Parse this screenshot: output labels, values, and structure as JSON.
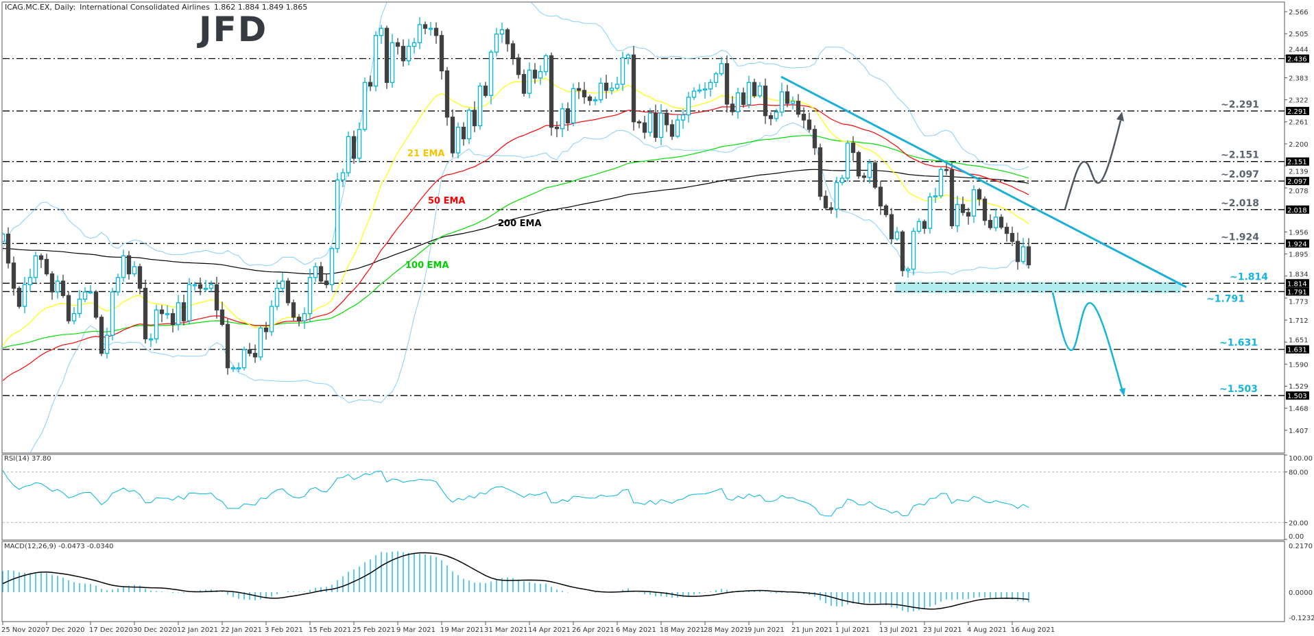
{
  "header": {
    "symbol": "ICAG.MC.EX, Daily:",
    "name": "International Consolidated Airlines",
    "ohlc": "1.862 1.884 1.849 1.865"
  },
  "logo": "JFD",
  "colors": {
    "bull": "#00b4e0",
    "bear": "#404040",
    "bollinger": "#87cefa",
    "ema21": "#ffff00",
    "ema50": "#ff0000",
    "ema100": "#00dd00",
    "ema200": "#000000",
    "trendline": "#1ab0d8",
    "support_zone": "#b0ecf0",
    "bull_scenario": "#4f5862",
    "bear_scenario": "#14b4dc"
  },
  "chart_data": {
    "type": "candlestick",
    "title": "ICAG.MC.EX, Daily:  International Consolidated Airlines",
    "x_tick_labels": [
      "25 Nov 2020",
      "7 Dec 2020",
      "17 Dec 2020",
      "30 Dec 2020",
      "12 Jan 2021",
      "22 Jan 2021",
      "3 Feb 2021",
      "15 Feb 2021",
      "25 Feb 2021",
      "9 Mar 2021",
      "19 Mar 2021",
      "31 Mar 2021",
      "14 Apr 2021",
      "26 Apr 2021",
      "6 May 2021",
      "18 May 2021",
      "28 May 2021",
      "9 Jun 2021",
      "21 Jun 2021",
      "1 Jul 2021",
      "13 Jul 2021",
      "23 Jul 2021",
      "4 Aug 2021",
      "16 Aug 2021"
    ],
    "ylim": [
      1.38,
      2.6
    ],
    "y_tick_labels": [
      "2.566",
      "2.505",
      "2.444",
      "2.383",
      "2.322",
      "2.261",
      "2.200",
      "2.139",
      "2.078",
      "1.956",
      "1.895",
      "1.834",
      "1.773",
      "1.712",
      "1.651",
      "1.590",
      "1.529",
      "1.468",
      "1.407"
    ],
    "close": [
      1.95,
      1.87,
      1.8,
      1.75,
      1.81,
      1.83,
      1.89,
      1.88,
      1.84,
      1.79,
      1.82,
      1.78,
      1.71,
      1.73,
      1.77,
      1.79,
      1.79,
      1.72,
      1.62,
      1.67,
      1.79,
      1.83,
      1.89,
      1.84,
      1.86,
      1.8,
      1.66,
      1.66,
      1.74,
      1.73,
      1.73,
      1.7,
      1.76,
      1.71,
      1.81,
      1.81,
      1.8,
      1.8,
      1.81,
      1.74,
      1.7,
      1.58,
      1.58,
      1.58,
      1.63,
      1.62,
      1.61,
      1.69,
      1.68,
      1.75,
      1.8,
      1.82,
      1.76,
      1.72,
      1.71,
      1.73,
      1.83,
      1.86,
      1.82,
      1.81,
      1.91,
      2.1,
      2.12,
      2.22,
      2.16,
      2.24,
      2.37,
      2.36,
      2.5,
      2.52,
      2.37,
      2.48,
      2.47,
      2.43,
      2.47,
      2.48,
      2.53,
      2.52,
      2.52,
      2.5,
      2.402,
      2.274,
      2.175,
      2.246,
      2.214,
      2.293,
      2.25,
      2.36,
      2.334,
      2.454,
      2.504,
      2.516,
      2.477,
      2.438,
      2.392,
      2.34,
      2.404,
      2.382,
      2.4,
      2.444,
      2.246,
      2.242,
      2.297,
      2.258,
      2.353,
      2.348,
      2.33,
      2.32,
      2.322,
      2.368,
      2.348,
      2.354,
      2.365,
      2.438,
      2.446,
      2.261,
      2.258,
      2.232,
      2.285,
      2.218,
      2.285,
      2.253,
      2.221,
      2.266,
      2.28,
      2.329,
      2.346,
      2.349,
      2.352,
      2.37,
      2.394,
      2.422,
      2.31,
      2.289,
      2.341,
      2.309,
      2.37,
      2.333,
      2.36,
      2.278,
      2.27,
      2.288,
      2.344,
      2.312,
      2.318,
      2.282,
      2.266,
      2.24,
      2.189,
      2.055,
      2.023,
      2.019,
      2.093,
      2.105,
      2.202,
      2.176,
      2.111,
      2.107,
      2.147,
      2.08,
      2.028,
      2.004,
      1.937,
      1.956,
      1.849,
      1.853,
      1.958,
      1.985,
      1.966,
      2.053,
      2.056,
      2.129,
      2.128,
      1.973,
      2.032,
      2.01,
      2.0,
      2.073,
      2.047,
      1.988,
      1.968,
      1.997,
      1.969,
      1.952,
      1.93,
      1.874,
      1.915,
      1.865
    ],
    "indicators": {
      "ema21_label": "21 EMA",
      "ema50_label": "50 EMA",
      "ema100_label": "100 EMA",
      "ema200_label": "200 EMA"
    },
    "levels": [
      {
        "value": 2.436,
        "axis_label": "2.436",
        "annotation": ""
      },
      {
        "value": 2.291,
        "axis_label": "2.291",
        "annotation": "~2.291",
        "tone": "gray"
      },
      {
        "value": 2.151,
        "axis_label": "2.151",
        "annotation": "~2.151",
        "tone": "gray"
      },
      {
        "value": 2.097,
        "axis_label": "2.097",
        "annotation": "~2.097",
        "tone": "gray"
      },
      {
        "value": 2.018,
        "axis_label": "2.018",
        "annotation": "~2.018",
        "tone": "gray"
      },
      {
        "value": 1.924,
        "axis_label": "1.924",
        "annotation": "~1.924",
        "tone": "gray"
      },
      {
        "value": 1.814,
        "axis_label": "1.814",
        "annotation": "~1.814",
        "tone": "cyan"
      },
      {
        "value": 1.791,
        "axis_label": "1.791",
        "annotation": "~1.791",
        "tone": "cyan"
      },
      {
        "value": 1.631,
        "axis_label": "1.631",
        "annotation": "~1.631",
        "tone": "cyan"
      },
      {
        "value": 1.503,
        "axis_label": "1.503",
        "annotation": "~1.503",
        "tone": "cyan"
      }
    ],
    "rsi": {
      "label": "RSI(14) 37.80",
      "ylim": [
        0,
        100
      ],
      "y_tick_labels": [
        "100.00",
        "80.00",
        "20.00",
        "0.00"
      ],
      "levels": [
        80,
        20
      ]
    },
    "macd": {
      "label": "MACD(12,26,9) -0.0473 -0.0340",
      "ylim": [
        -0.1232,
        0.217
      ],
      "y_tick_labels": [
        "0.2170",
        "0.0000",
        "-0.1232"
      ]
    }
  }
}
